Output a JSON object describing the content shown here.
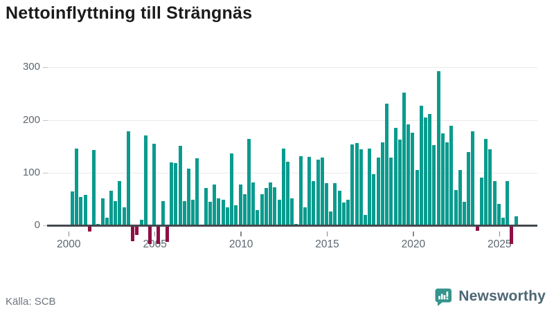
{
  "title": "Nettoinflyttning till Strängnäs",
  "source": "Källa: SCB",
  "brand": {
    "name": "Newsworthy"
  },
  "colors": {
    "positive_bar": "#0a9b8e",
    "negative_bar": "#8e0f45",
    "axis_line": "#43484d",
    "gridline": "#e9e9e9",
    "tick_text": "#5c6670",
    "title_text": "#1b1b1b",
    "source_text": "#6d7680",
    "brand_icon": "#35948c",
    "brand_text": "#4d6673"
  },
  "chart_data": {
    "type": "bar",
    "title": "Nettoinflyttning till Strängnäs",
    "xlabel": "",
    "ylabel": "",
    "period": "quarterly",
    "start": "2000 Q1",
    "x_tick_labels": [
      "2000",
      "2005",
      "2010",
      "2015",
      "2020",
      "2025"
    ],
    "y_ticks": [
      0,
      100,
      200,
      300
    ],
    "ylim": [
      -45,
      310
    ],
    "grid": true,
    "legend": false,
    "values": [
      64,
      146,
      54,
      58,
      -10,
      143,
      3,
      51,
      15,
      66,
      46,
      84,
      34,
      178,
      -28,
      -17,
      11,
      171,
      -34,
      155,
      -34,
      46,
      -30,
      120,
      118,
      151,
      46,
      107,
      49,
      127,
      0,
      71,
      45,
      78,
      51,
      48,
      34,
      136,
      38,
      77,
      59,
      164,
      82,
      29,
      59,
      71,
      81,
      72,
      49,
      146,
      121,
      51,
      3,
      131,
      34,
      130,
      84,
      125,
      128,
      80,
      26,
      80,
      65,
      43,
      48,
      154,
      156,
      145,
      20,
      146,
      97,
      128,
      157,
      231,
      128,
      185,
      163,
      252,
      192,
      176,
      105,
      227,
      205,
      211,
      152,
      293,
      175,
      158,
      189,
      67,
      105,
      44,
      139,
      179,
      -8,
      91,
      164,
      144,
      84,
      41,
      15,
      84,
      -34,
      17
    ]
  }
}
